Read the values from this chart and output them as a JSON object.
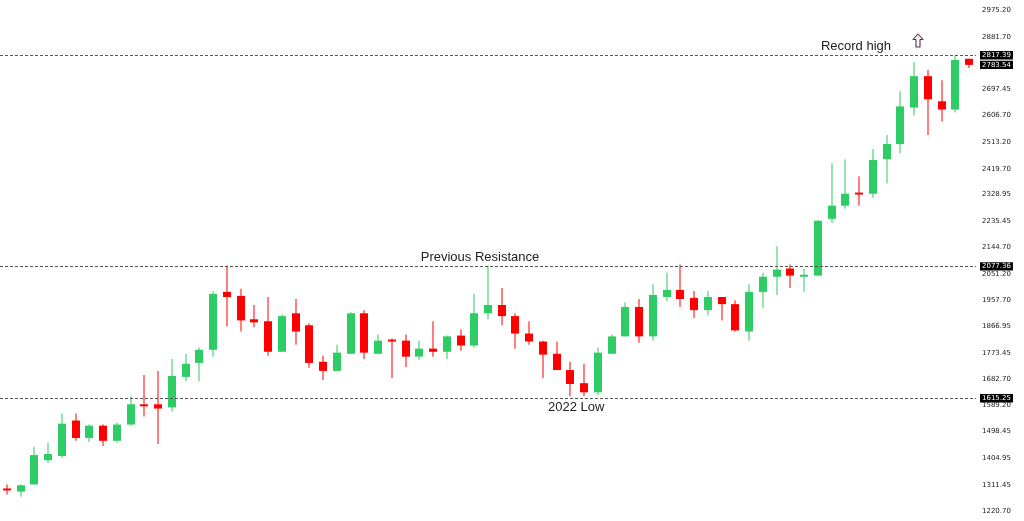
{
  "chart_data": {
    "type": "candlestick",
    "categories": [
      null,
      null,
      null,
      null,
      null,
      null,
      null,
      null,
      null,
      null,
      null,
      null,
      null,
      null,
      null,
      null,
      null,
      null,
      null,
      null,
      null,
      null,
      null,
      null,
      null,
      null,
      null,
      null,
      null,
      null,
      null,
      null,
      null,
      null,
      null,
      null,
      null,
      null,
      null,
      null,
      null,
      null,
      null,
      null,
      null,
      null,
      null,
      null,
      null,
      null,
      null,
      null,
      null,
      null,
      null,
      null,
      null,
      null,
      null,
      null,
      null,
      null,
      null,
      null,
      null,
      null,
      null,
      null,
      null,
      null,
      null
    ],
    "ohlc": [
      [
        1299,
        1313,
        1278,
        1292
      ],
      [
        1288,
        1313,
        1270,
        1310
      ],
      [
        1313,
        1445,
        1313,
        1416
      ],
      [
        1398,
        1459,
        1388,
        1420
      ],
      [
        1413,
        1562,
        1405,
        1526
      ],
      [
        1537,
        1562,
        1466,
        1476
      ],
      [
        1476,
        1523,
        1462,
        1519
      ],
      [
        1519,
        1523,
        1448,
        1466
      ],
      [
        1466,
        1530,
        1459,
        1523
      ],
      [
        1523,
        1622,
        1519,
        1594
      ],
      [
        1594,
        1697,
        1551,
        1587
      ],
      [
        1594,
        1711,
        1455,
        1579
      ],
      [
        1583,
        1753,
        1569,
        1693
      ],
      [
        1690,
        1771,
        1675,
        1736
      ],
      [
        1739,
        1793,
        1675,
        1785
      ],
      [
        1785,
        1991,
        1761,
        1981
      ],
      [
        1988,
        2080,
        1867,
        1970
      ],
      [
        1974,
        1999,
        1849,
        1888
      ],
      [
        1892,
        1942,
        1864,
        1881
      ],
      [
        1885,
        1970,
        1764,
        1778
      ],
      [
        1778,
        1910,
        1778,
        1903
      ],
      [
        1913,
        1963,
        1803,
        1849
      ],
      [
        1871,
        1878,
        1722,
        1739
      ],
      [
        1743,
        1764,
        1679,
        1711
      ],
      [
        1711,
        1803,
        1711,
        1775
      ],
      [
        1771,
        1917,
        1771,
        1913
      ],
      [
        1913,
        1924,
        1753,
        1775
      ],
      [
        1771,
        1839,
        1771,
        1817
      ],
      [
        1821,
        1825,
        1686,
        1814
      ],
      [
        1817,
        1839,
        1725,
        1761
      ],
      [
        1761,
        1817,
        1750,
        1789
      ],
      [
        1789,
        1885,
        1761,
        1778
      ],
      [
        1778,
        1835,
        1753,
        1832
      ],
      [
        1835,
        1856,
        1782,
        1800
      ],
      [
        1800,
        1981,
        1793,
        1913
      ],
      [
        1913,
        2080,
        1892,
        1942
      ],
      [
        1942,
        2002,
        1871,
        1903
      ],
      [
        1903,
        1913,
        1789,
        1842
      ],
      [
        1842,
        1885,
        1803,
        1814
      ],
      [
        1814,
        1817,
        1686,
        1768
      ],
      [
        1771,
        1814,
        1714,
        1714
      ],
      [
        1714,
        1743,
        1622,
        1665
      ],
      [
        1668,
        1736,
        1622,
        1636
      ],
      [
        1636,
        1793,
        1626,
        1775
      ],
      [
        1771,
        1839,
        1771,
        1832
      ],
      [
        1832,
        1952,
        1832,
        1935
      ],
      [
        1935,
        1963,
        1810,
        1832
      ],
      [
        1832,
        2016,
        1817,
        1977
      ],
      [
        1970,
        2055,
        1956,
        1995
      ],
      [
        1995,
        2084,
        1935,
        1963
      ],
      [
        1967,
        1991,
        1896,
        1924
      ],
      [
        1924,
        1991,
        1906,
        1970
      ],
      [
        1970,
        1970,
        1888,
        1945
      ],
      [
        1945,
        1959,
        1849,
        1853
      ],
      [
        1849,
        2016,
        1817,
        1988
      ],
      [
        1988,
        2055,
        1931,
        2041
      ],
      [
        2041,
        2148,
        1977,
        2066
      ],
      [
        2070,
        2084,
        2002,
        2045
      ],
      [
        2041,
        2070,
        1988,
        2048
      ],
      [
        2045,
        2240,
        2045,
        2237
      ],
      [
        2244,
        2439,
        2229,
        2290
      ],
      [
        2290,
        2453,
        2279,
        2332
      ],
      [
        2336,
        2393,
        2290,
        2329
      ],
      [
        2332,
        2489,
        2318,
        2450
      ],
      [
        2453,
        2538,
        2368,
        2506
      ],
      [
        2506,
        2691,
        2474,
        2638
      ],
      [
        2634,
        2794,
        2606,
        2744
      ],
      [
        2744,
        2766,
        2538,
        2663
      ],
      [
        2656,
        2730,
        2585,
        2627
      ],
      [
        2627,
        2817,
        2617,
        2801
      ],
      [
        2805,
        2805,
        2773,
        2783.54
      ]
    ],
    "colors": [
      "#ff0000",
      "#2ecc64",
      "#2ecc64",
      "#2ecc64",
      "#2ecc64",
      "#ff0000",
      "#2ecc64",
      "#ff0000",
      "#2ecc64",
      "#2ecc64",
      "#ff0000",
      "#ff0000",
      "#2ecc64",
      "#2ecc64",
      "#2ecc64",
      "#2ecc64",
      "#ff0000",
      "#ff0000",
      "#ff0000",
      "#ff0000",
      "#2ecc64",
      "#ff0000",
      "#ff0000",
      "#ff0000",
      "#2ecc64",
      "#2ecc64",
      "#ff0000",
      "#2ecc64",
      "#ff0000",
      "#ff0000",
      "#2ecc64",
      "#ff0000",
      "#2ecc64",
      "#ff0000",
      "#2ecc64",
      "#2ecc64",
      "#ff0000",
      "#ff0000",
      "#ff0000",
      "#ff0000",
      "#ff0000",
      "#ff0000",
      "#ff0000",
      "#2ecc64",
      "#2ecc64",
      "#2ecc64",
      "#ff0000",
      "#2ecc64",
      "#2ecc64",
      "#ff0000",
      "#ff0000",
      "#2ecc64",
      "#ff0000",
      "#ff0000",
      "#2ecc64",
      "#2ecc64",
      "#2ecc64",
      "#ff0000",
      "#2ecc64",
      "#2ecc64",
      "#2ecc64",
      "#2ecc64",
      "#ff0000",
      "#2ecc64",
      "#2ecc64",
      "#2ecc64",
      "#2ecc64",
      "#ff0000",
      "#ff0000",
      "#2ecc64",
      "#ff0000"
    ],
    "ylim": [
      1220.7,
      2975.2
    ],
    "yticks": [
      {
        "value": 2975.2,
        "label": "2975.20"
      },
      {
        "value": 2881.7,
        "label": "2881.70"
      },
      {
        "value": 2817.39,
        "label": "2817.39"
      },
      {
        "value": 2783.54,
        "label": "2783.54"
      },
      {
        "value": 2697.45,
        "label": "2697.45"
      },
      {
        "value": 2606.7,
        "label": "2606.70"
      },
      {
        "value": 2513.2,
        "label": "2513.20"
      },
      {
        "value": 2419.7,
        "label": "2419.70"
      },
      {
        "value": 2328.95,
        "label": "2328.95"
      },
      {
        "value": 2235.45,
        "label": "2235.45"
      },
      {
        "value": 2144.7,
        "label": "2144.70"
      },
      {
        "value": 2077.36,
        "label": "2077.36"
      },
      {
        "value": 2051.2,
        "label": "2051.20"
      },
      {
        "value": 1957.7,
        "label": "1957.70"
      },
      {
        "value": 1866.95,
        "label": "1866.95"
      },
      {
        "value": 1773.45,
        "label": "1773.45"
      },
      {
        "value": 1682.7,
        "label": "1682.70"
      },
      {
        "value": 1615.25,
        "label": "1615.25"
      },
      {
        "value": 1589.2,
        "label": "1589.20"
      },
      {
        "value": 1498.45,
        "label": "1498.45"
      },
      {
        "value": 1404.95,
        "label": "1404.95"
      },
      {
        "value": 1311.45,
        "label": "1311.45"
      },
      {
        "value": 1220.7,
        "label": "1220.70"
      }
    ],
    "ref_lines": [
      {
        "axis": "y",
        "value": 2817.39,
        "label": "Record high",
        "color": "#555555",
        "line_style": "dashed"
      },
      {
        "axis": "y",
        "value": 2077.36,
        "label": "Previous Resistance",
        "color": "#555555",
        "line_style": "dashed"
      },
      {
        "axis": "y",
        "value": 1615.25,
        "label": "2022 Low",
        "color": "#555555",
        "line_style": "dashed"
      }
    ],
    "tick_labels": "y",
    "grid": false,
    "legend": false
  }
}
